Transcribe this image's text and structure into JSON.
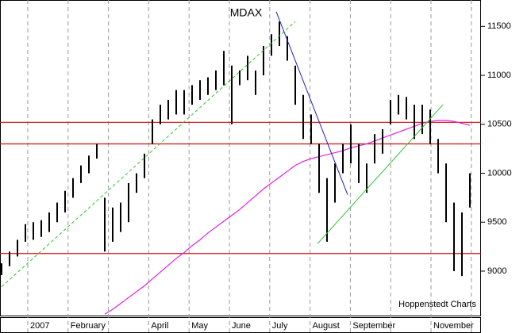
{
  "chart_data": {
    "type": "stock",
    "title": "MDAX",
    "source": "Hoppenstedt Charts",
    "categories": [
      "2007",
      "February",
      null,
      "April",
      "May",
      "June",
      "July",
      "August",
      "September",
      null,
      "November",
      null
    ],
    "ylim": [
      8530,
      11770
    ],
    "yticks": [
      9000,
      9500,
      10000,
      10500,
      11000,
      11500
    ],
    "grid": true,
    "high": [
      9080,
      9200,
      9320,
      9480,
      9500,
      9520,
      9600,
      9700,
      9820,
      9950,
      10080,
      10180,
      10300,
      9750,
      9650,
      9700,
      9900,
      10000,
      10200,
      10550,
      10700,
      10750,
      10850,
      10850,
      10900,
      10950,
      10980,
      11050,
      11250,
      11100,
      11050,
      11200,
      11050,
      11300,
      11420,
      11550,
      11400,
      11100,
      10800,
      10600,
      10300,
      9950,
      10100,
      10300,
      10500,
      10300,
      10100,
      10400,
      10450,
      10750,
      10800,
      10780,
      10700,
      10700,
      10650,
      10350,
      10100,
      9700,
      9600,
      10000
    ],
    "low": [
      8960,
      9050,
      9150,
      9300,
      9320,
      9350,
      9400,
      9500,
      9600,
      9750,
      9900,
      10000,
      10150,
      9200,
      9300,
      9400,
      9500,
      9800,
      9950,
      10300,
      10500,
      10550,
      10600,
      10600,
      10700,
      10750,
      10800,
      10850,
      10900,
      10500,
      10900,
      10950,
      10800,
      11000,
      11200,
      11300,
      11150,
      10700,
      10350,
      10300,
      9800,
      9300,
      9700,
      10000,
      10100,
      9900,
      9800,
      10100,
      10200,
      10500,
      10600,
      10550,
      10350,
      10400,
      10300,
      10000,
      9500,
      9000,
      8950,
      9650
    ],
    "bar_color": "#000000",
    "moving_average": {
      "color": "#e020e0",
      "values": [
        null,
        null,
        null,
        null,
        null,
        null,
        null,
        null,
        null,
        null,
        null,
        null,
        null,
        8560,
        8610,
        8670,
        8730,
        8790,
        8850,
        8920,
        8990,
        9060,
        9130,
        9190,
        9260,
        9320,
        9390,
        9450,
        9510,
        9570,
        9630,
        9700,
        9770,
        9840,
        9900,
        9960,
        10020,
        10080,
        10120,
        10150,
        10170,
        10190,
        10210,
        10230,
        10260,
        10280,
        10300,
        10330,
        10360,
        10390,
        10420,
        10450,
        10480,
        10510,
        10530,
        10540,
        10540,
        10530,
        10510,
        10490
      ]
    },
    "hlines": {
      "color": "#d01010",
      "values": [
        10520,
        10300,
        9180
      ]
    },
    "trendlines": [
      {
        "color": "#30c030",
        "dashed": true,
        "x": [
          0,
          37
        ],
        "values": [
          8840,
          11550
        ]
      },
      {
        "color": "#2020c0",
        "dashed": false,
        "x": [
          34.6,
          43.6
        ],
        "values": [
          11650,
          9780
        ]
      },
      {
        "color": "#30c030",
        "dashed": false,
        "x": [
          39.8,
          55.6
        ],
        "values": [
          9280,
          10700
        ]
      }
    ]
  }
}
